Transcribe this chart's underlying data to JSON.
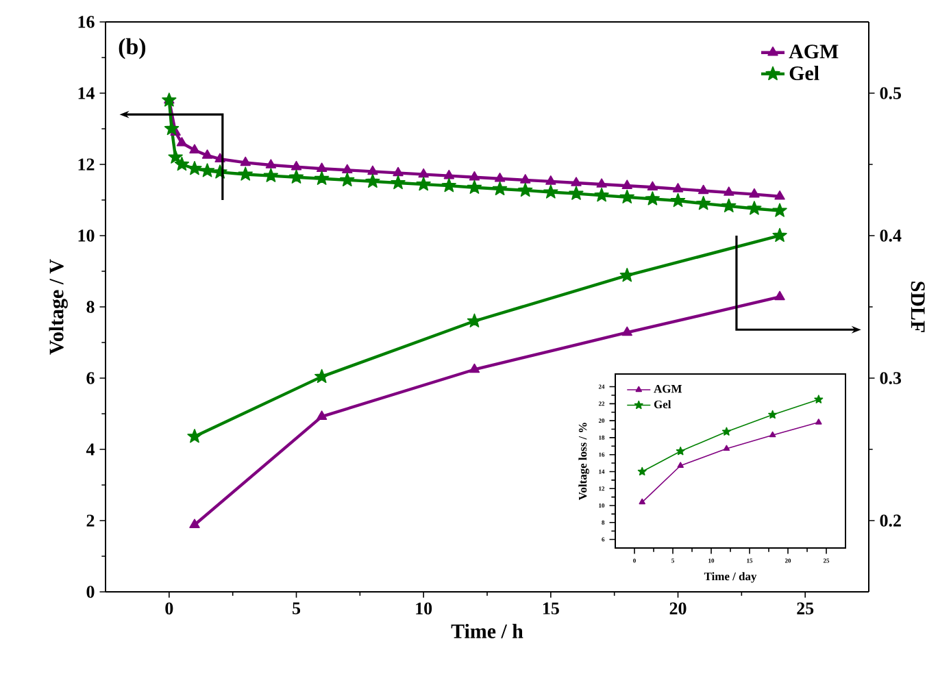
{
  "chart_data": [
    {
      "type": "line",
      "xlabel": "Time / h",
      "ylabel": "Voltage / V",
      "y2label": "SDLF",
      "annotations": [
        "(b)"
      ],
      "legend": "top right",
      "line_style": "solid",
      "xlim": [
        -2.5,
        27.5
      ],
      "xticks": [
        0,
        5,
        10,
        15,
        20,
        25
      ],
      "ylim": [
        0,
        16
      ],
      "yticks": [
        0,
        2,
        4,
        6,
        8,
        10,
        12,
        14,
        16
      ],
      "y2lim": [
        0.15,
        0.55
      ],
      "y2ticks": [
        0.2,
        0.3,
        0.4,
        0.5
      ],
      "series": [
        {
          "name": "AGM",
          "color": "#800080",
          "marker": "triangle",
          "x": [
            0,
            0.25,
            0.5,
            1,
            1.5,
            2,
            3,
            4,
            5,
            6,
            7,
            8,
            9,
            10,
            11,
            12,
            13,
            14,
            15,
            16,
            17,
            18,
            19,
            20,
            21,
            22,
            23,
            24
          ],
          "values": [
            13.8,
            12.9,
            12.6,
            12.4,
            12.25,
            12.15,
            12.05,
            11.98,
            11.93,
            11.88,
            11.84,
            11.8,
            11.76,
            11.72,
            11.68,
            11.64,
            11.6,
            11.56,
            11.52,
            11.48,
            11.44,
            11.4,
            11.36,
            11.31,
            11.26,
            11.21,
            11.16,
            11.1
          ]
        },
        {
          "name": "Gel",
          "color": "#008000",
          "marker": "star",
          "x": [
            0,
            0.1,
            0.25,
            0.5,
            1,
            1.5,
            2,
            3,
            4,
            5,
            6,
            7,
            8,
            9,
            10,
            11,
            12,
            13,
            14,
            15,
            16,
            17,
            18,
            19,
            20,
            21,
            22,
            23,
            24
          ],
          "values": [
            13.8,
            13.0,
            12.2,
            12.0,
            11.88,
            11.82,
            11.78,
            11.72,
            11.68,
            11.64,
            11.6,
            11.56,
            11.52,
            11.48,
            11.44,
            11.4,
            11.35,
            11.31,
            11.27,
            11.22,
            11.18,
            11.13,
            11.08,
            11.03,
            10.98,
            10.9,
            10.83,
            10.76,
            10.7
          ]
        },
        {
          "color": "#800080",
          "marker": "triangle",
          "axis": "y2",
          "x": [
            1,
            6,
            12,
            18,
            24
          ],
          "values": [
            0.197,
            0.273,
            0.306,
            0.332,
            0.357
          ]
        },
        {
          "color": "#008000",
          "marker": "star",
          "axis": "y2",
          "x": [
            1,
            6,
            12,
            18,
            24
          ],
          "values": [
            0.259,
            0.301,
            0.34,
            0.372,
            0.4
          ]
        }
      ]
    },
    {
      "type": "line",
      "xlabel": "Time / day",
      "ylabel": "Voltage loss / %",
      "legend": "top left",
      "line_style": "solid",
      "xlim": [
        -2.5,
        27.5
      ],
      "xticks": [
        0,
        5,
        10,
        15,
        20,
        25
      ],
      "ylim": [
        5,
        25.5
      ],
      "yticks": [
        6,
        8,
        10,
        12,
        14,
        16,
        18,
        20,
        22,
        24
      ],
      "series": [
        {
          "name": "AGM",
          "color": "#800080",
          "marker": "triangle",
          "x": [
            1,
            6,
            12,
            18,
            24
          ],
          "values": [
            10.4,
            14.7,
            16.7,
            18.3,
            19.8
          ]
        },
        {
          "name": "Gel",
          "color": "#008000",
          "marker": "star",
          "x": [
            1,
            6,
            12,
            18,
            24
          ],
          "values": [
            14.0,
            16.4,
            18.7,
            20.7,
            22.5
          ]
        }
      ]
    }
  ]
}
